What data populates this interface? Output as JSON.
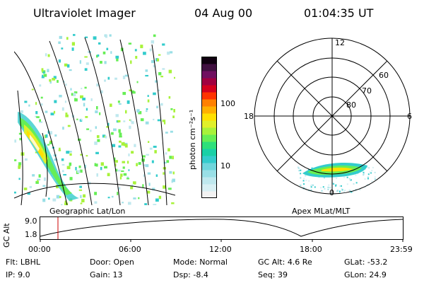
{
  "header": {
    "title": "Ultraviolet Imager",
    "date": "04 Aug 00",
    "time": "01:04:35 UT"
  },
  "geo_panel": {
    "label": "Geographic Lat/Lon"
  },
  "colorbar": {
    "unit_label": "photon cm⁻²s⁻¹",
    "ticks": [
      "100",
      "10"
    ],
    "colors": [
      "#f2f2f2",
      "#d8f0f4",
      "#bfe8ee",
      "#99dfe6",
      "#6fd6dc",
      "#33cccc",
      "#19d0a6",
      "#2ee07a",
      "#66ee55",
      "#a8f23a",
      "#e0f02a",
      "#ffe000",
      "#ffb000",
      "#ff8000",
      "#ff3300",
      "#d4001e",
      "#a00040",
      "#701060",
      "#401040",
      "#100010"
    ]
  },
  "polar_panel": {
    "label": "Apex MLat/MLT",
    "mlt_labels": {
      "top": "12",
      "left": "18",
      "right": "6",
      "bottom": "0"
    },
    "lat_labels": [
      "60",
      "70",
      "80"
    ]
  },
  "timeline": {
    "y_axis_label": "GC Alt",
    "y_ticks": [
      "9.0",
      "1.8"
    ],
    "x_ticks": [
      "00:00",
      "06:00",
      "12:00",
      "18:00",
      "23:59"
    ],
    "marker_color": "#cc0000"
  },
  "status": {
    "col1": [
      {
        "key": "Flt:",
        "value": "LBHL"
      },
      {
        "key": "IP:",
        "value": "9.0"
      }
    ],
    "col2": [
      {
        "key": "Door:",
        "value": "Open"
      },
      {
        "key": "Gain:",
        "value": "13"
      }
    ],
    "col3": [
      {
        "key": "Mode:",
        "value": "Normal"
      },
      {
        "key": "Dsp:",
        "value": "-8.4"
      }
    ],
    "col4": [
      {
        "key": "GC Alt:",
        "value": "4.6 Re"
      },
      {
        "key": "Seq:",
        "value": "39"
      }
    ],
    "col5": [
      {
        "key": "GLat:",
        "value": "-53.2"
      },
      {
        "key": "GLon:",
        "value": "24.9"
      }
    ]
  }
}
